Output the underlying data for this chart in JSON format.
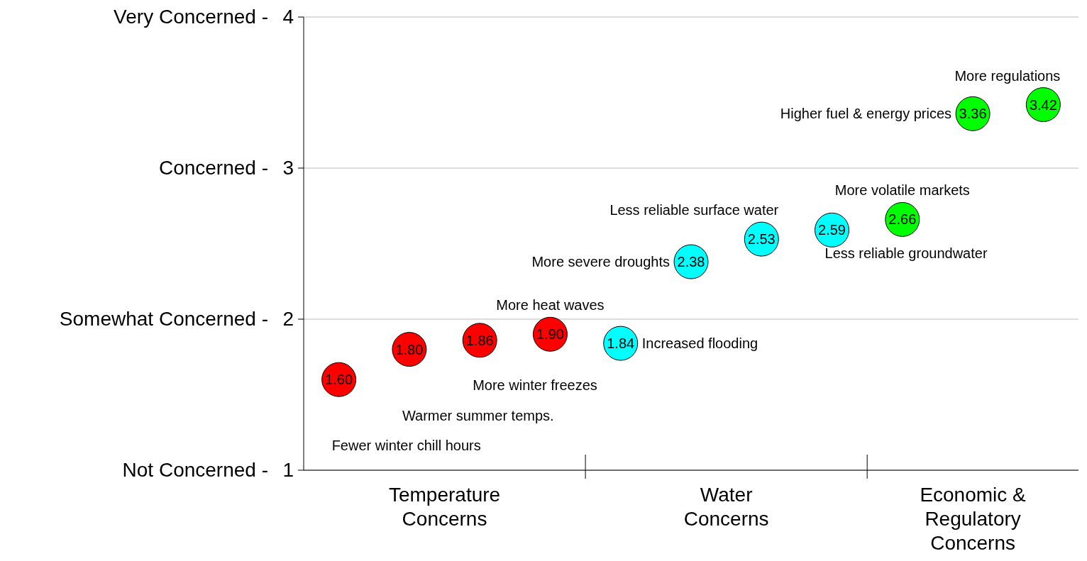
{
  "chart_data": {
    "type": "scatter",
    "marker": "circle",
    "grid": "y",
    "categories": [
      null,
      null,
      null,
      null,
      null,
      null,
      null,
      null,
      null,
      null,
      null
    ],
    "ylim": [
      1,
      4
    ],
    "yticks": [
      1,
      2,
      3,
      4
    ],
    "series": [
      {
        "name": "Fewer winter chill hours",
        "color": "#ff0000",
        "values": [
          1.6,
          null,
          null,
          null,
          null,
          null,
          null,
          null,
          null,
          null,
          null
        ],
        "value_labels": [
          "1.60",
          null,
          null,
          null,
          null,
          null,
          null,
          null,
          null,
          null,
          null
        ]
      },
      {
        "name": "Warmer summer temps.",
        "color": "#ff0000",
        "values": [
          null,
          1.8,
          null,
          null,
          null,
          null,
          null,
          null,
          null,
          null,
          null
        ],
        "value_labels": [
          null,
          "1.80",
          null,
          null,
          null,
          null,
          null,
          null,
          null,
          null,
          null
        ]
      },
      {
        "name": "More winter freezes",
        "color": "#ff0000",
        "values": [
          null,
          null,
          1.86,
          null,
          null,
          null,
          null,
          null,
          null,
          null,
          null
        ],
        "value_labels": [
          null,
          null,
          "1.86",
          null,
          null,
          null,
          null,
          null,
          null,
          null,
          null
        ]
      },
      {
        "name": "More heat waves",
        "color": "#ff0000",
        "values": [
          null,
          null,
          null,
          1.9,
          null,
          null,
          null,
          null,
          null,
          null,
          null
        ],
        "value_labels": [
          null,
          null,
          null,
          "1.90",
          null,
          null,
          null,
          null,
          null,
          null,
          null
        ]
      },
      {
        "name": "Increased flooding",
        "color": "#00ffff",
        "values": [
          null,
          null,
          null,
          null,
          1.84,
          null,
          null,
          null,
          null,
          null,
          null
        ],
        "value_labels": [
          null,
          null,
          null,
          null,
          "1.84",
          null,
          null,
          null,
          null,
          null,
          null
        ]
      },
      {
        "name": "More severe droughts",
        "color": "#00ffff",
        "values": [
          null,
          null,
          null,
          null,
          null,
          2.38,
          null,
          null,
          null,
          null,
          null
        ],
        "value_labels": [
          null,
          null,
          null,
          null,
          null,
          "2.38",
          null,
          null,
          null,
          null,
          null
        ]
      },
      {
        "name": "Less reliable surface water",
        "color": "#00ffff",
        "values": [
          null,
          null,
          null,
          null,
          null,
          null,
          2.53,
          null,
          null,
          null,
          null
        ],
        "value_labels": [
          null,
          null,
          null,
          null,
          null,
          null,
          "2.53",
          null,
          null,
          null,
          null
        ]
      },
      {
        "name": "Less reliable groundwater",
        "color": "#00ffff",
        "values": [
          null,
          null,
          null,
          null,
          null,
          null,
          null,
          2.59,
          null,
          null,
          null
        ],
        "value_labels": [
          null,
          null,
          null,
          null,
          null,
          null,
          null,
          "2.59",
          null,
          null,
          null
        ]
      },
      {
        "name": "More volatile markets",
        "color": "#00ff00",
        "values": [
          null,
          null,
          null,
          null,
          null,
          null,
          null,
          null,
          2.66,
          null,
          null
        ],
        "value_labels": [
          null,
          null,
          null,
          null,
          null,
          null,
          null,
          null,
          "2.66",
          null,
          null
        ]
      },
      {
        "name": "Higher fuel & energy prices",
        "color": "#00ff00",
        "values": [
          null,
          null,
          null,
          null,
          null,
          null,
          null,
          null,
          null,
          3.36,
          null
        ],
        "value_labels": [
          null,
          null,
          null,
          null,
          null,
          null,
          null,
          null,
          null,
          "3.36",
          null
        ]
      },
      {
        "name": "More regulations",
        "color": "#00ff00",
        "values": [
          null,
          null,
          null,
          null,
          null,
          null,
          null,
          null,
          null,
          null,
          3.42
        ],
        "value_labels": [
          null,
          null,
          null,
          null,
          null,
          null,
          null,
          null,
          null,
          null,
          "3.42"
        ]
      }
    ],
    "annotations": [
      "Temperature Concerns",
      "Water Concerns",
      "Economic & Regulatory Concerns",
      "Not Concerned -",
      "Somewhat Concerned -",
      "Concerned -",
      "Very Concerned -"
    ]
  }
}
